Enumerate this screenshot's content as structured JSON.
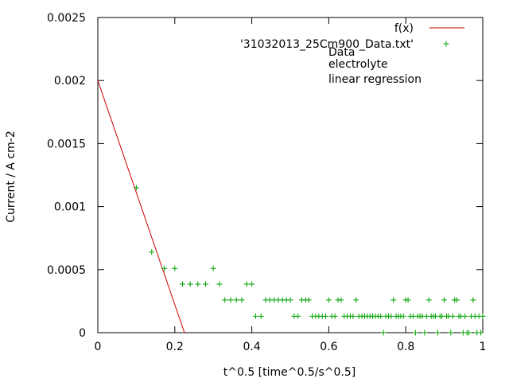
{
  "chart_data": {
    "type": "scatter",
    "xlabel": "t^0.5 [time^0.5/s^0.5]",
    "ylabel": "Current / A cm-2",
    "xlim": [
      0,
      1
    ],
    "ylim": [
      0,
      0.0025
    ],
    "grid": false,
    "legend_placement": "top-right",
    "x_ticks": [
      0,
      0.2,
      0.4,
      0.6,
      0.8,
      1
    ],
    "x_tick_labels": [
      "0",
      "0.2",
      "0.4",
      "0.6",
      "0.8",
      "1"
    ],
    "y_ticks": [
      0,
      0.0005,
      0.001,
      0.0015,
      0.002,
      0.0025
    ],
    "y_tick_labels": [
      "0",
      "0.0005",
      "0.001",
      "0.0015",
      "0.002",
      "0.0025"
    ],
    "series": [
      {
        "name": "f(x)",
        "kind": "line",
        "color": "#cc0000",
        "x": [
          0,
          0.225
        ],
        "y": [
          0.002,
          0
        ]
      },
      {
        "name": "'31032013_25Cm900_Data.txt'",
        "kind": "points",
        "color": "#00a000",
        "marker": "plus",
        "x": [
          0.1,
          0.14,
          0.173,
          0.2,
          0.22,
          0.24,
          0.26,
          0.28,
          0.3,
          0.316,
          0.33,
          0.345,
          0.36,
          0.374,
          0.387,
          0.4,
          0.41,
          0.424,
          0.436,
          0.447,
          0.458,
          0.469,
          0.48,
          0.49,
          0.5,
          0.51,
          0.52,
          0.53,
          0.54,
          0.548,
          0.557,
          0.566,
          0.574,
          0.583,
          0.592,
          0.6,
          0.608,
          0.616,
          0.624,
          0.632,
          0.64,
          0.648,
          0.656,
          0.663,
          0.671,
          0.678,
          0.686,
          0.693,
          0.7,
          0.707,
          0.714,
          0.721,
          0.728,
          0.735,
          0.742,
          0.748,
          0.755,
          0.762,
          0.768,
          0.775,
          0.781,
          0.787,
          0.794,
          0.8,
          0.806,
          0.812,
          0.819,
          0.825,
          0.831,
          0.837,
          0.843,
          0.849,
          0.854,
          0.86,
          0.866,
          0.872,
          0.877,
          0.883,
          0.889,
          0.894,
          0.9,
          0.906,
          0.911,
          0.917,
          0.922,
          0.927,
          0.933,
          0.938,
          0.943,
          0.949,
          0.954,
          0.959,
          0.964,
          0.97,
          0.975,
          0.98,
          0.985,
          0.99,
          0.995,
          1.0
        ],
        "y": [
          0.00115,
          0.00064,
          0.00051,
          0.00051,
          0.000385,
          0.000385,
          0.000385,
          0.000385,
          0.00051,
          0.000385,
          0.00026,
          0.00026,
          0.00026,
          0.00026,
          0.000385,
          0.000385,
          0.00013,
          0.00013,
          0.00026,
          0.00026,
          0.00026,
          0.00026,
          0.00026,
          0.00026,
          0.00026,
          0.00013,
          0.00013,
          0.00026,
          0.00026,
          0.00026,
          0.00013,
          0.00013,
          0.00013,
          0.00013,
          0.00013,
          0.00026,
          0.00013,
          0.00013,
          0.00026,
          0.00026,
          0.00013,
          0.00013,
          0.00013,
          0.00013,
          0.00026,
          0.00013,
          0.00013,
          0.00013,
          0.00013,
          0.00013,
          0.00013,
          0.00013,
          0.00013,
          0.00013,
          0.0,
          0.00013,
          0.00013,
          0.00013,
          0.00026,
          0.00013,
          0.00013,
          0.00013,
          0.00013,
          0.00026,
          0.00026,
          0.00013,
          0.00013,
          0.0,
          0.00013,
          0.00013,
          0.00013,
          0.0,
          0.00013,
          0.00026,
          0.00013,
          0.00013,
          0.00013,
          0.0,
          0.00013,
          0.00013,
          0.00026,
          0.00013,
          0.00013,
          0.0,
          0.00013,
          0.00026,
          0.00026,
          0.00013,
          0.00013,
          0.0,
          0.00013,
          0.0,
          0.0,
          0.00013,
          0.00026,
          0.00013,
          0.0,
          0.00013,
          0.0,
          0.00013
        ]
      },
      {
        "name": "Data",
        "kind": "legend-only"
      },
      {
        "name": "electrolyte",
        "kind": "legend-only"
      },
      {
        "name": "linear regression",
        "kind": "legend-only"
      }
    ]
  }
}
